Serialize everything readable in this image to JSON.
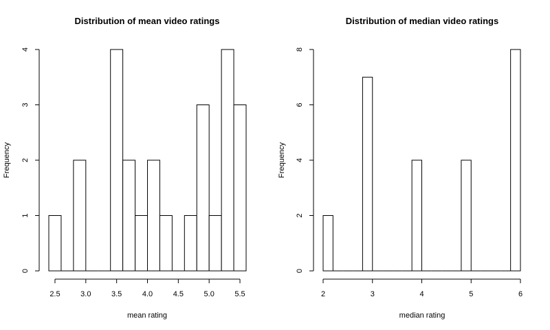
{
  "chart_data": [
    {
      "type": "bar",
      "title": "Distribution of mean video ratings",
      "xlabel": "mean rating",
      "ylabel": "Frequency",
      "bin_edges": [
        2.4,
        2.6,
        2.8,
        3.0,
        3.2,
        3.4,
        3.6,
        3.8,
        4.0,
        4.2,
        4.4,
        4.6,
        4.8,
        5.0,
        5.2,
        5.4,
        5.6
      ],
      "values": [
        1,
        0,
        2,
        0,
        0,
        4,
        2,
        1,
        2,
        1,
        0,
        1,
        3,
        1,
        4,
        3
      ],
      "xlim": [
        2.4,
        5.6
      ],
      "ylim": [
        0,
        4
      ],
      "xticks": [
        2.5,
        3.0,
        3.5,
        4.0,
        4.5,
        5.0,
        5.5
      ],
      "xtick_labels": [
        "2.5",
        "3.0",
        "3.5",
        "4.0",
        "4.5",
        "5.0",
        "5.5"
      ],
      "yticks": [
        0,
        1,
        2,
        3,
        4
      ],
      "ytick_labels": [
        "0",
        "1",
        "2",
        "3",
        "4"
      ],
      "grid": false
    },
    {
      "type": "bar",
      "title": "Distribution of median video ratings",
      "xlabel": "median rating",
      "ylabel": "Frequency",
      "bin_edges": [
        2.0,
        2.2,
        2.4,
        2.6,
        2.8,
        3.0,
        3.2,
        3.4,
        3.6,
        3.8,
        4.0,
        4.2,
        4.4,
        4.6,
        4.8,
        5.0,
        5.2,
        5.4,
        5.6,
        5.8,
        6.0
      ],
      "values": [
        2,
        0,
        0,
        0,
        7,
        0,
        0,
        0,
        0,
        4,
        0,
        0,
        0,
        0,
        4,
        0,
        0,
        0,
        0,
        8
      ],
      "xlim": [
        2.0,
        6.0
      ],
      "ylim": [
        0,
        8
      ],
      "xticks": [
        2,
        3,
        4,
        5,
        6
      ],
      "xtick_labels": [
        "2",
        "3",
        "4",
        "5",
        "6"
      ],
      "yticks": [
        0,
        2,
        4,
        6,
        8
      ],
      "ytick_labels": [
        "0",
        "2",
        "4",
        "6",
        "8"
      ],
      "grid": false
    }
  ]
}
